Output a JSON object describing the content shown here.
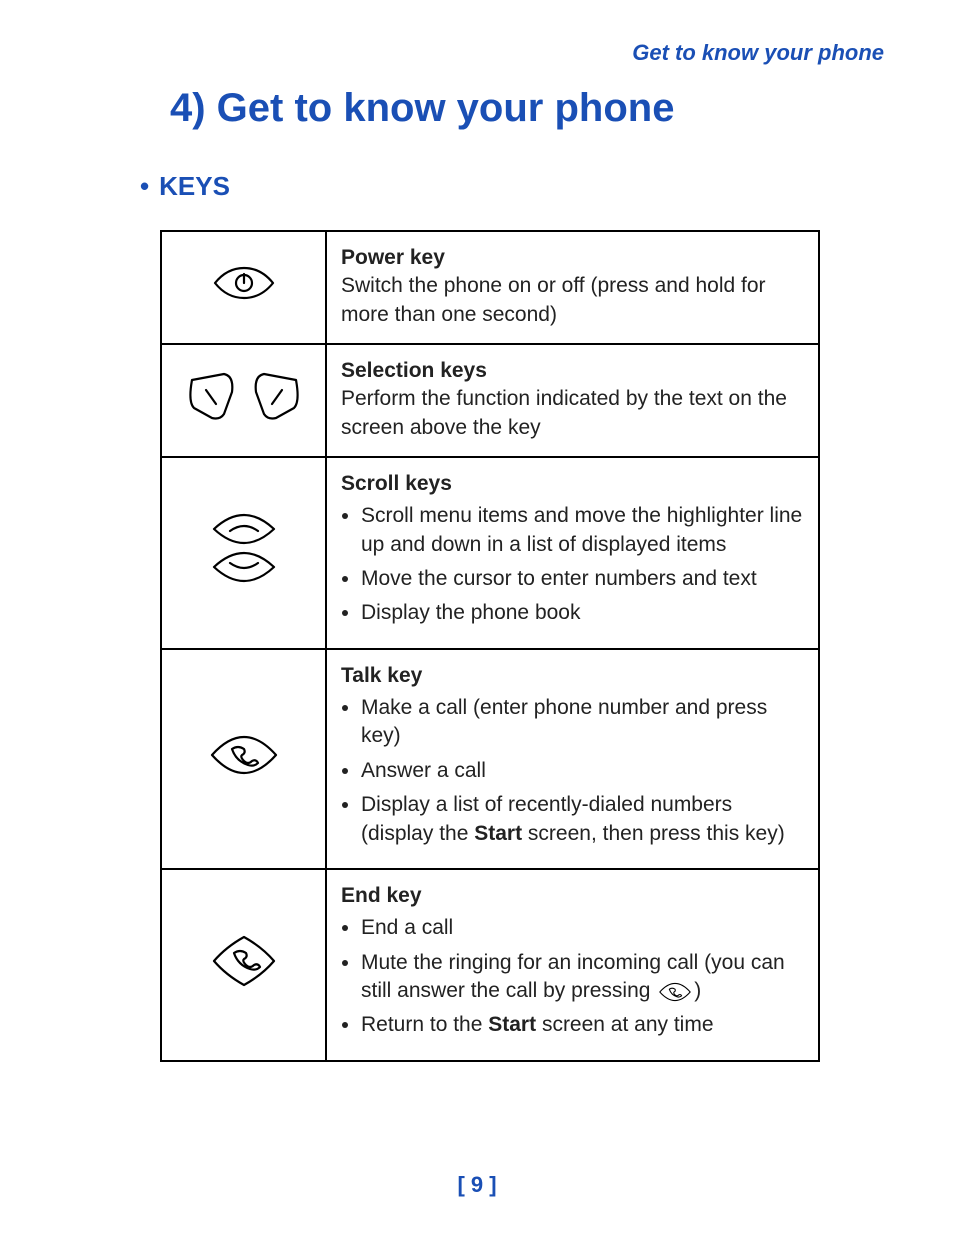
{
  "running_header": "Get to know your phone",
  "chapter_title": "4) Get to know your phone",
  "section_heading": "KEYS",
  "section_bullet": "•",
  "page_number": "[ 9 ]",
  "colors": {
    "accent": "#1a4fb5",
    "text": "#222222",
    "rule": "#000000",
    "background": "#ffffff"
  },
  "keys_table": [
    {
      "icon": "power-key-icon",
      "title": "Power key",
      "description": "Switch the phone on or off (press and hold for more than one second)"
    },
    {
      "icon": "selection-keys-icon",
      "title": "Selection keys",
      "description": "Perform the function indicated by the text on the screen above the key"
    },
    {
      "icon": "scroll-keys-icon",
      "title": "Scroll keys",
      "bullets": [
        "Scroll menu items and move the highlighter line up and down in a list of displayed items",
        "Move the cursor to enter numbers and text",
        "Display the phone book"
      ]
    },
    {
      "icon": "talk-key-icon",
      "title": "Talk key",
      "bullets": [
        "Make a call (enter phone number and press key)",
        "Answer a call",
        "Display a list of recently-dialed numbers (display the <b>Start</b> screen, then press this key)"
      ]
    },
    {
      "icon": "end-key-icon",
      "title": "End key",
      "bullets": [
        "End a call",
        "Mute the ringing for an incoming call (you can still answer the call by pressing {talk-icon})",
        "Return to the <b>Start</b> screen at any time"
      ]
    }
  ]
}
